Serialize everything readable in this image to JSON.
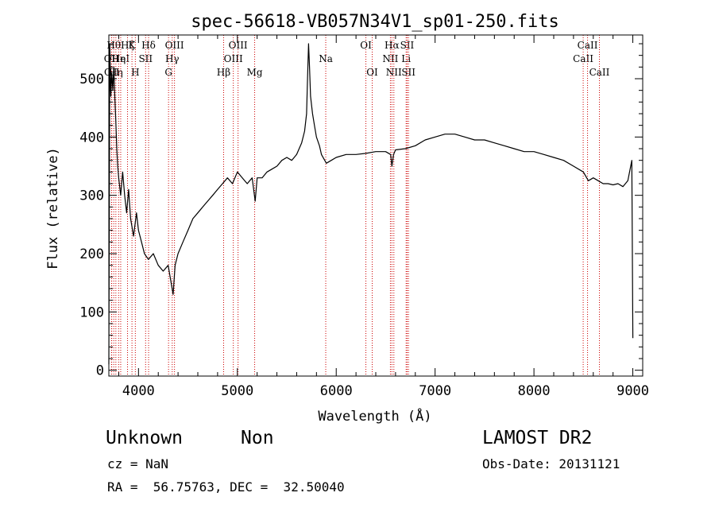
{
  "chart_data": {
    "type": "line",
    "title": "spec-56618-VB057N34V1_sp01-250.fits",
    "xlabel": "Wavelength (Å)",
    "ylabel": "Flux (relative)",
    "xlim": [
      3700,
      9100
    ],
    "ylim": [
      -10,
      575
    ],
    "x_ticks": [
      4000,
      5000,
      6000,
      7000,
      8000,
      9000
    ],
    "y_ticks": [
      0,
      100,
      200,
      300,
      400,
      500
    ],
    "x_tick_labels": [
      "4000",
      "5000",
      "6000",
      "7000",
      "8000",
      "9000"
    ],
    "y_tick_labels": [
      "0",
      "100",
      "200",
      "300",
      "400",
      "500"
    ],
    "grid": false,
    "line_color": "#000000",
    "marker_color": "#cc0000",
    "series": [
      {
        "x": [
          3700,
          3710,
          3720,
          3730,
          3740,
          3750,
          3760,
          3770,
          3780,
          3790,
          3800,
          3820,
          3840,
          3860,
          3880,
          3900,
          3920,
          3950,
          3980,
          4000,
          4030,
          4060,
          4100,
          4150,
          4200,
          4250,
          4300,
          4330,
          4350,
          4370,
          4400,
          4450,
          4500,
          4550,
          4600,
          4650,
          4700,
          4750,
          4800,
          4850,
          4900,
          4950,
          5000,
          5050,
          5100,
          5150,
          5180,
          5200,
          5250,
          5300,
          5350,
          5400,
          5450,
          5500,
          5550,
          5600,
          5650,
          5680,
          5700,
          5710,
          5720,
          5730,
          5740,
          5760,
          5780,
          5800,
          5830,
          5850,
          5900,
          5950,
          6000,
          6100,
          6200,
          6300,
          6400,
          6500,
          6550,
          6563,
          6580,
          6600,
          6700,
          6800,
          6900,
          7000,
          7100,
          7200,
          7300,
          7400,
          7500,
          7600,
          7700,
          7800,
          7900,
          8000,
          8100,
          8200,
          8300,
          8400,
          8500,
          8550,
          8600,
          8650,
          8700,
          8750,
          8800,
          8850,
          8900,
          8950,
          8990,
          9000
        ],
        "y": [
          10,
          560,
          470,
          510,
          480,
          520,
          470,
          430,
          380,
          350,
          330,
          300,
          340,
          300,
          270,
          310,
          260,
          230,
          270,
          240,
          220,
          200,
          190,
          200,
          180,
          170,
          180,
          150,
          130,
          180,
          200,
          220,
          240,
          260,
          270,
          280,
          290,
          300,
          310,
          320,
          330,
          320,
          340,
          330,
          320,
          330,
          290,
          330,
          330,
          340,
          345,
          350,
          360,
          365,
          360,
          370,
          390,
          410,
          440,
          500,
          560,
          520,
          470,
          440,
          420,
          400,
          385,
          370,
          355,
          360,
          365,
          370,
          370,
          372,
          375,
          375,
          370,
          350,
          370,
          378,
          380,
          385,
          395,
          400,
          405,
          405,
          400,
          395,
          395,
          390,
          385,
          380,
          375,
          375,
          370,
          365,
          360,
          350,
          340,
          325,
          330,
          325,
          320,
          320,
          318,
          320,
          315,
          325,
          360,
          55
        ]
      }
    ],
    "line_markers": [
      {
        "x": 3727,
        "label": "OII",
        "row": 1
      },
      {
        "x": 3729,
        "label": "OII",
        "row": 2
      },
      {
        "x": 3750,
        "label": "Hθ",
        "row": 0
      },
      {
        "x": 3771,
        "label": "Hη",
        "row": 2
      },
      {
        "x": 3799,
        "label": "Hη",
        "row": 1
      },
      {
        "x": 3820,
        "label": "HeI",
        "row": 1
      },
      {
        "x": 3889,
        "label": "Hζ",
        "row": 0
      },
      {
        "x": 3934,
        "label": "K",
        "row": 0
      },
      {
        "x": 3968,
        "label": "H",
        "row": 2
      },
      {
        "x": 4072,
        "label": "SII",
        "row": 1
      },
      {
        "x": 4102,
        "label": "Hδ",
        "row": 0
      },
      {
        "x": 4304,
        "label": "G",
        "row": 2
      },
      {
        "x": 4341,
        "label": "Hγ",
        "row": 1
      },
      {
        "x": 4364,
        "label": "OIII",
        "row": 0
      },
      {
        "x": 4861,
        "label": "Hβ",
        "row": 2
      },
      {
        "x": 4959,
        "label": "OIII",
        "row": 1
      },
      {
        "x": 5007,
        "label": "OIII",
        "row": 0
      },
      {
        "x": 5175,
        "label": "Mg",
        "row": 2
      },
      {
        "x": 5894,
        "label": "Na",
        "row": 1
      },
      {
        "x": 6300,
        "label": "OI",
        "row": 0
      },
      {
        "x": 6364,
        "label": "OI",
        "row": 2
      },
      {
        "x": 6548,
        "label": "NII",
        "row": 1
      },
      {
        "x": 6563,
        "label": "Hα",
        "row": 0
      },
      {
        "x": 6583,
        "label": "NII",
        "row": 2
      },
      {
        "x": 6707,
        "label": "Li",
        "row": 1
      },
      {
        "x": 6717,
        "label": "SII",
        "row": 0
      },
      {
        "x": 6731,
        "label": "SII",
        "row": 2
      },
      {
        "x": 8498,
        "label": "CaII",
        "row": 1
      },
      {
        "x": 8542,
        "label": "CaII",
        "row": 0
      },
      {
        "x": 8662,
        "label": "CaII",
        "row": 2
      }
    ]
  },
  "footer": {
    "class_label": "Unknown",
    "subclass_label": "Non",
    "survey": "LAMOST DR2",
    "cz": "cz = NaN",
    "obs_date": "Obs-Date: 20131121",
    "coords": "RA =  56.75763, DEC =  32.50040"
  }
}
